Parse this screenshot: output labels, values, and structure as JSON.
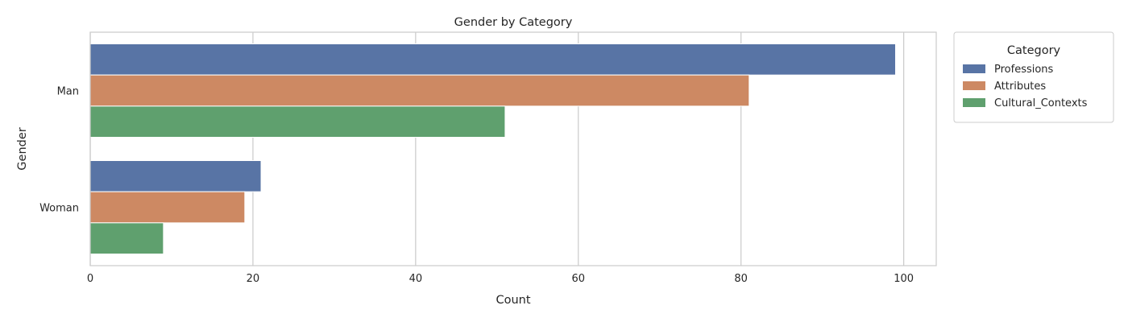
{
  "chart_data": {
    "type": "bar",
    "orientation": "horizontal",
    "title": "Gender by Category",
    "xlabel": "Count",
    "ylabel": "Gender",
    "categories": [
      "Man",
      "Woman"
    ],
    "series": [
      {
        "name": "Professions",
        "values": [
          99,
          21
        ],
        "color": "#5874a5"
      },
      {
        "name": "Attributes",
        "values": [
          81,
          19
        ],
        "color": "#cd8963"
      },
      {
        "name": "Cultural_Contexts",
        "values": [
          51,
          9
        ],
        "color": "#5fa06e"
      }
    ],
    "xlim": [
      0,
      104
    ],
    "xticks": [
      "0",
      "20",
      "40",
      "60",
      "80",
      "100"
    ],
    "xtick_values": [
      0,
      20,
      40,
      60,
      80,
      100
    ],
    "grid": "vertical",
    "legend": {
      "title": "Category",
      "placement": "outside-top-right"
    }
  }
}
